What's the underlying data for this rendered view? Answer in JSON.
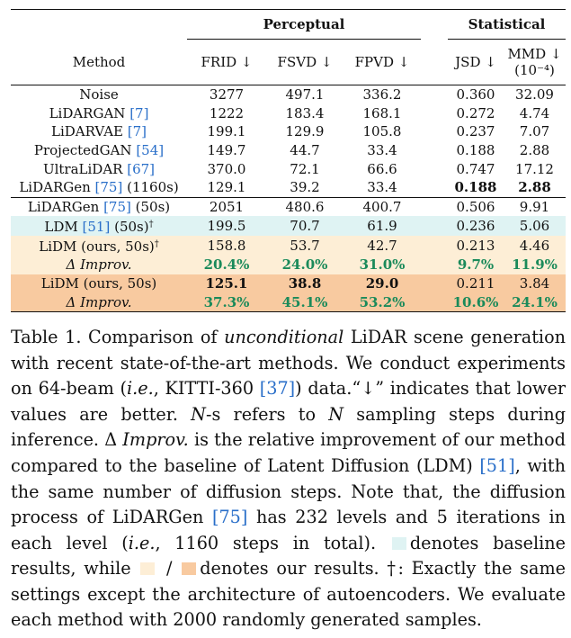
{
  "table": {
    "groups": {
      "perceptual": "Perceptual",
      "statistical": "Statistical"
    },
    "headers": {
      "method": "Method",
      "frid": "FRID ↓",
      "fsvd": "FSVD ↓",
      "fpvd": "FPVD ↓",
      "jsd": "JSD ↓",
      "mmd": "MMD ↓",
      "mmd_scale": "(10⁻⁴)"
    },
    "colors": {
      "cyan": "#dff3f3",
      "pale": "#fdeed6",
      "orange": "#f8caa0",
      "improv_text": "#1a8a5a",
      "citation": "#2a6fc9"
    },
    "rows": [
      {
        "name": "Noise",
        "cite": "",
        "suffix": "",
        "v": [
          "3277",
          "497.1",
          "336.2",
          "0.360",
          "32.09"
        ]
      },
      {
        "name": "LiDARGAN ",
        "cite": "[7]",
        "suffix": "",
        "v": [
          "1222",
          "183.4",
          "168.1",
          "0.272",
          "4.74"
        ]
      },
      {
        "name": "LiDARVAE ",
        "cite": "[7]",
        "suffix": "",
        "v": [
          "199.1",
          "129.9",
          "105.8",
          "0.237",
          "7.07"
        ]
      },
      {
        "name": "ProjectedGAN ",
        "cite": "[54]",
        "suffix": "",
        "v": [
          "149.7",
          "44.7",
          "33.4",
          "0.188",
          "2.88"
        ]
      },
      {
        "name": "UltraLiDAR ",
        "cite": "[67]",
        "suffix": "",
        "v": [
          "370.0",
          "72.1",
          "66.6",
          "0.747",
          "17.12"
        ]
      },
      {
        "name": "LiDARGen ",
        "cite": "[75]",
        "suffix": " (1160s)",
        "v": [
          "129.1",
          "39.2",
          "33.4",
          "0.188",
          "2.88"
        ]
      },
      {
        "name": "LiDARGen ",
        "cite": "[75]",
        "suffix": " (50s)",
        "v": [
          "2051",
          "480.6",
          "400.7",
          "0.506",
          "9.91"
        ]
      },
      {
        "name": "LDM ",
        "cite": "[51]",
        "suffix": " (50s)",
        "dagger": "†",
        "v": [
          "199.5",
          "70.7",
          "61.9",
          "0.236",
          "5.06"
        ]
      },
      {
        "name": "LiDM (ours, 50s)",
        "cite": "",
        "suffix": "",
        "dagger": "†",
        "v": [
          "158.8",
          "53.7",
          "42.7",
          "0.213",
          "4.46"
        ]
      },
      {
        "name": "Δ Improv.",
        "v": [
          "20.4%",
          "24.0%",
          "31.0%",
          "9.7%",
          "11.9%"
        ]
      },
      {
        "name": "LiDM (ours, 50s)",
        "cite": "",
        "suffix": "",
        "v": [
          "125.1",
          "38.8",
          "29.0",
          "0.211",
          "3.84"
        ]
      },
      {
        "name": "Δ Improv.",
        "v": [
          "37.3%",
          "45.1%",
          "53.2%",
          "10.6%",
          "24.1%"
        ]
      }
    ]
  },
  "caption": {
    "label": "Table 1.",
    "t1": " Comparison of ",
    "i1": "unconditional",
    "t2": " LiDAR scene generation with recent state-of-the-art methods. We conduct experiments on 64-beam (",
    "i2": "i.e.",
    "t3": ", KITTI-360 ",
    "c1": "[37]",
    "t4": ") data.“↓” indicates that lower values are better. ",
    "i3": "N",
    "t5": "-s refers to ",
    "i4": "N",
    "t6": " sampling steps during inference. Δ ",
    "i5": "Improv.",
    "t7": " is the relative improvement of our method compared to the baseline of Latent Diffusion (LDM) ",
    "c2": "[51]",
    "t8": ", with the same number of diffusion steps. Note that, the diffusion process of LiDARGen ",
    "c3": "[75]",
    "t9": " has 232 levels and 5 iterations in each level (",
    "i6": "i.e.",
    "t10": ", 1160 steps in total). ",
    "t11": "denotes baseline results, while ",
    "t12": " / ",
    "t13": "denotes our results. †: Exactly the same settings except the architecture of autoencoders. We evaluate each method with 2000 randomly generated samples."
  }
}
